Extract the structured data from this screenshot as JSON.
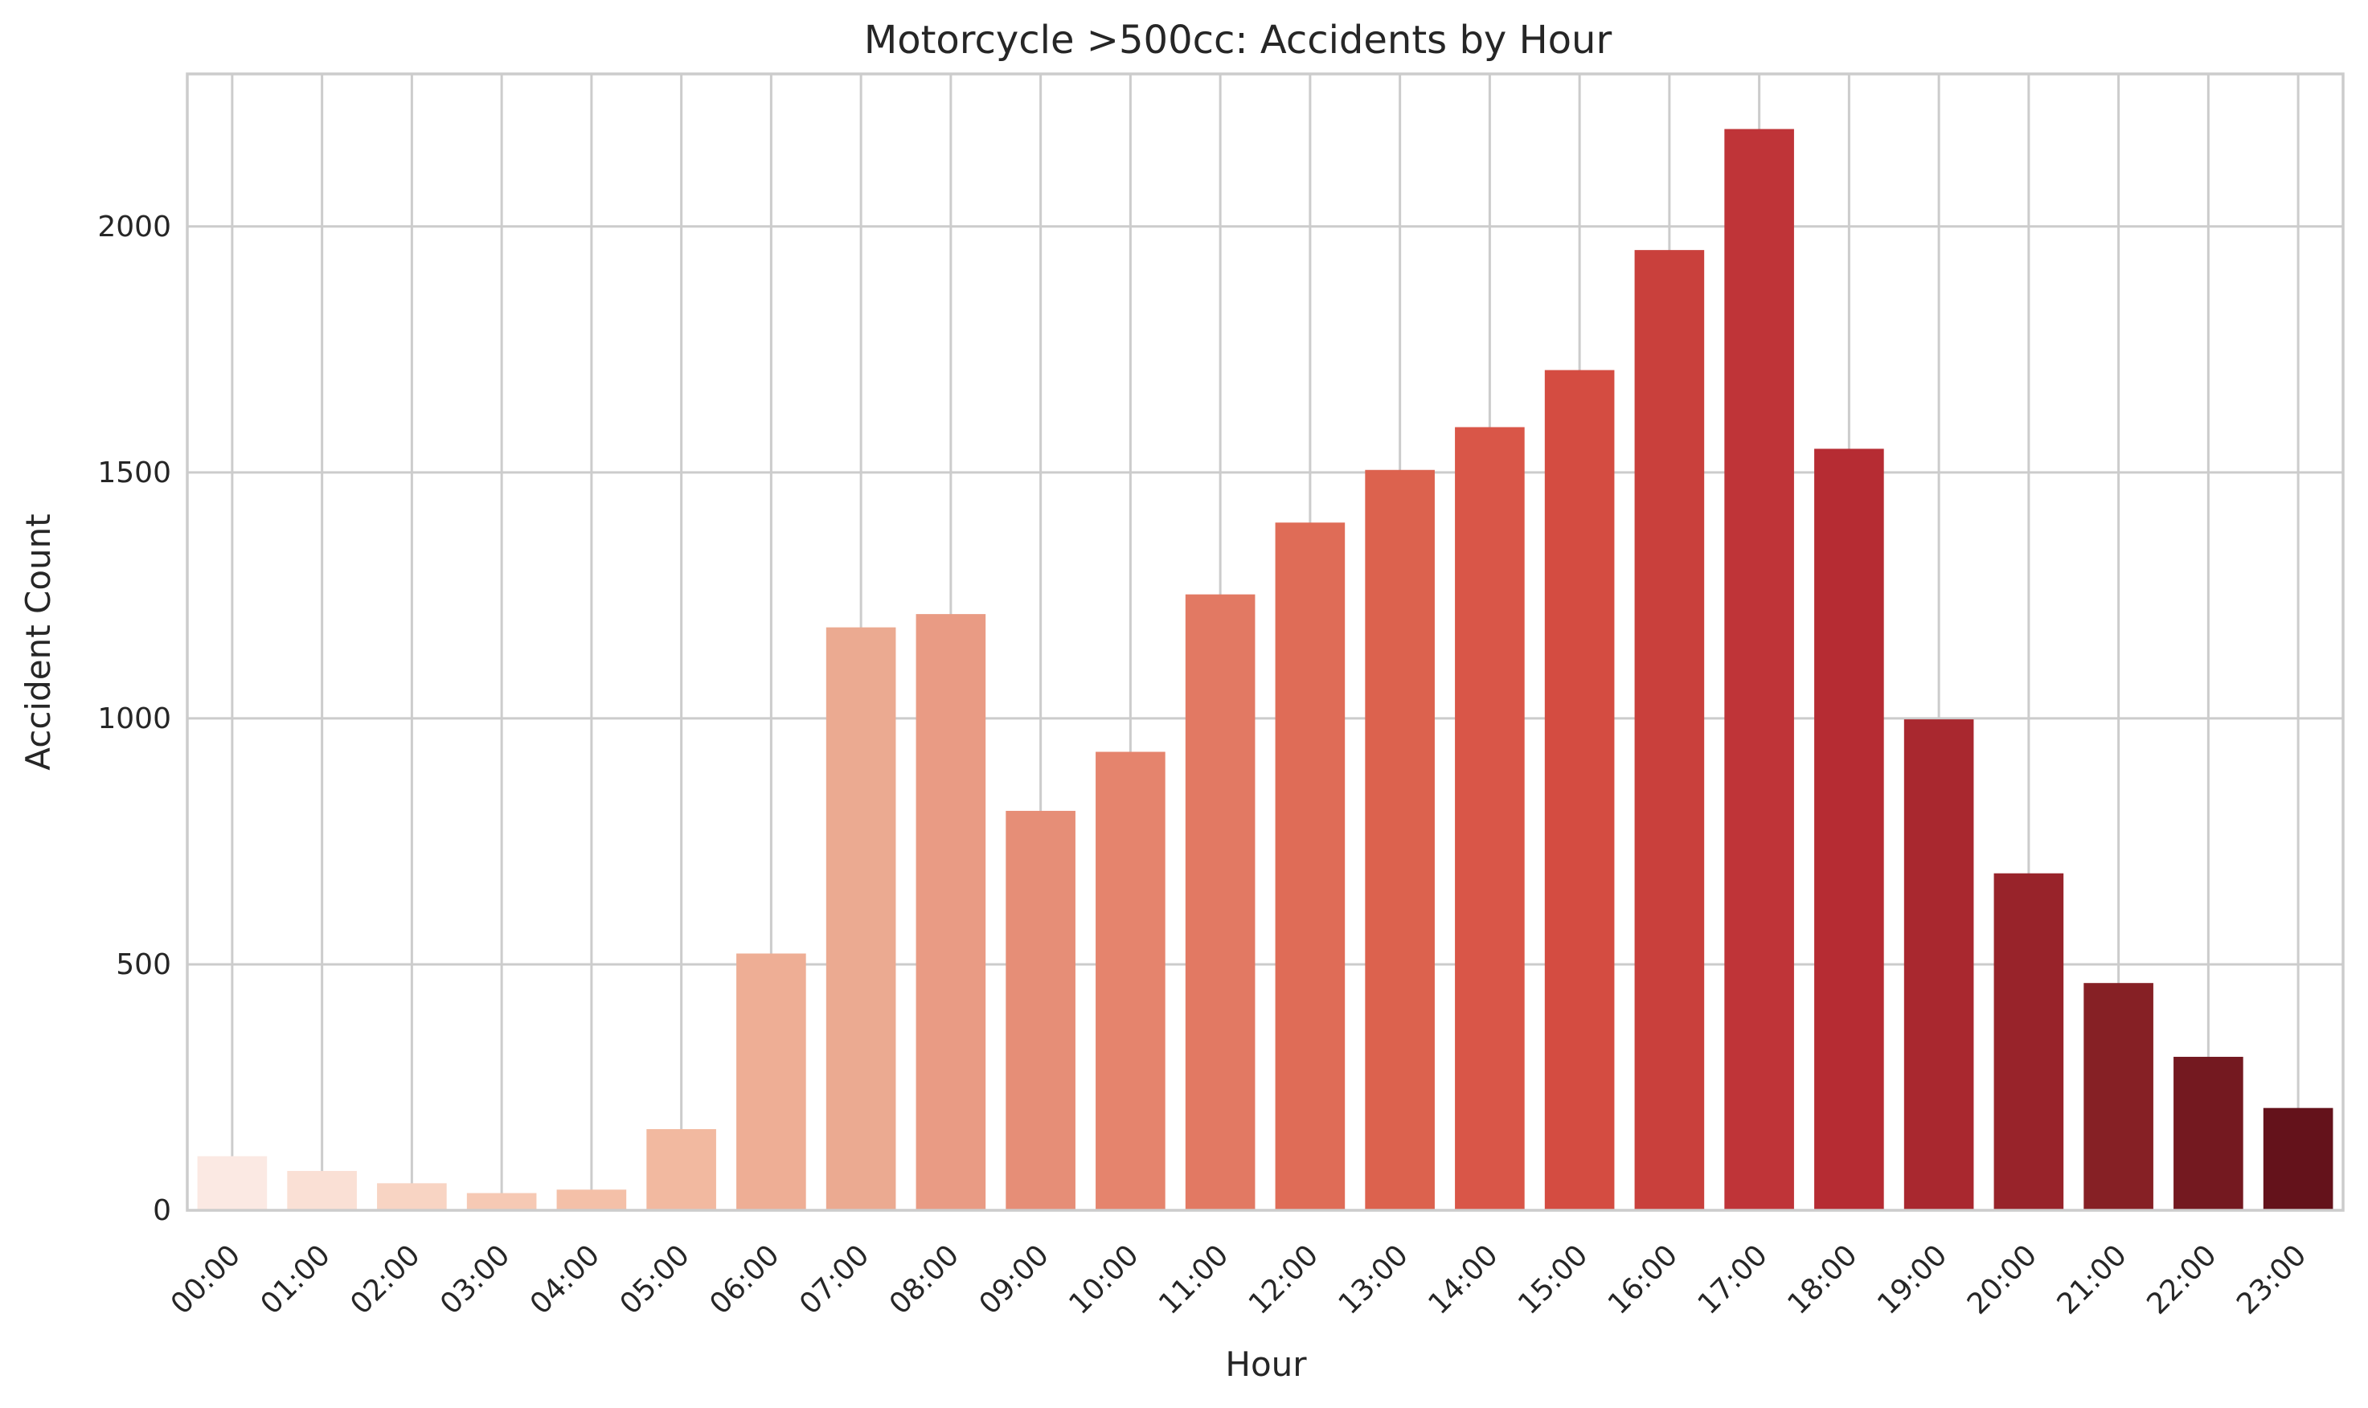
{
  "chart_data": {
    "type": "bar",
    "title": "Motorcycle >500cc: Accidents by Hour",
    "xlabel": "Hour",
    "ylabel": "Accident Count",
    "categories": [
      "00:00",
      "01:00",
      "02:00",
      "03:00",
      "04:00",
      "05:00",
      "06:00",
      "07:00",
      "08:00",
      "09:00",
      "10:00",
      "11:00",
      "12:00",
      "13:00",
      "14:00",
      "15:00",
      "16:00",
      "17:00",
      "18:00",
      "19:00",
      "20:00",
      "21:00",
      "22:00",
      "23:00"
    ],
    "values": [
      110,
      80,
      55,
      35,
      42,
      165,
      522,
      1185,
      1212,
      812,
      932,
      1252,
      1398,
      1505,
      1592,
      1708,
      1952,
      2198,
      1548,
      998,
      685,
      462,
      312,
      208
    ],
    "yticks": [
      0,
      500,
      1000,
      1500,
      2000
    ],
    "ylim": [
      0,
      2310
    ],
    "grid": true,
    "colors": [
      "#fbe9e3",
      "#fae0d5",
      "#f8d4c3",
      "#f6c9b4",
      "#f4c0a8",
      "#f2b9a0",
      "#eeae95",
      "#ebaa91",
      "#e99b84",
      "#e68e77",
      "#e5846d",
      "#e27963",
      "#df6c57",
      "#dc624e",
      "#d95648",
      "#d44c41",
      "#c9403c",
      "#bf3438",
      "#b62c33",
      "#a9282f",
      "#98232a",
      "#862025",
      "#741920",
      "#64121b"
    ]
  }
}
